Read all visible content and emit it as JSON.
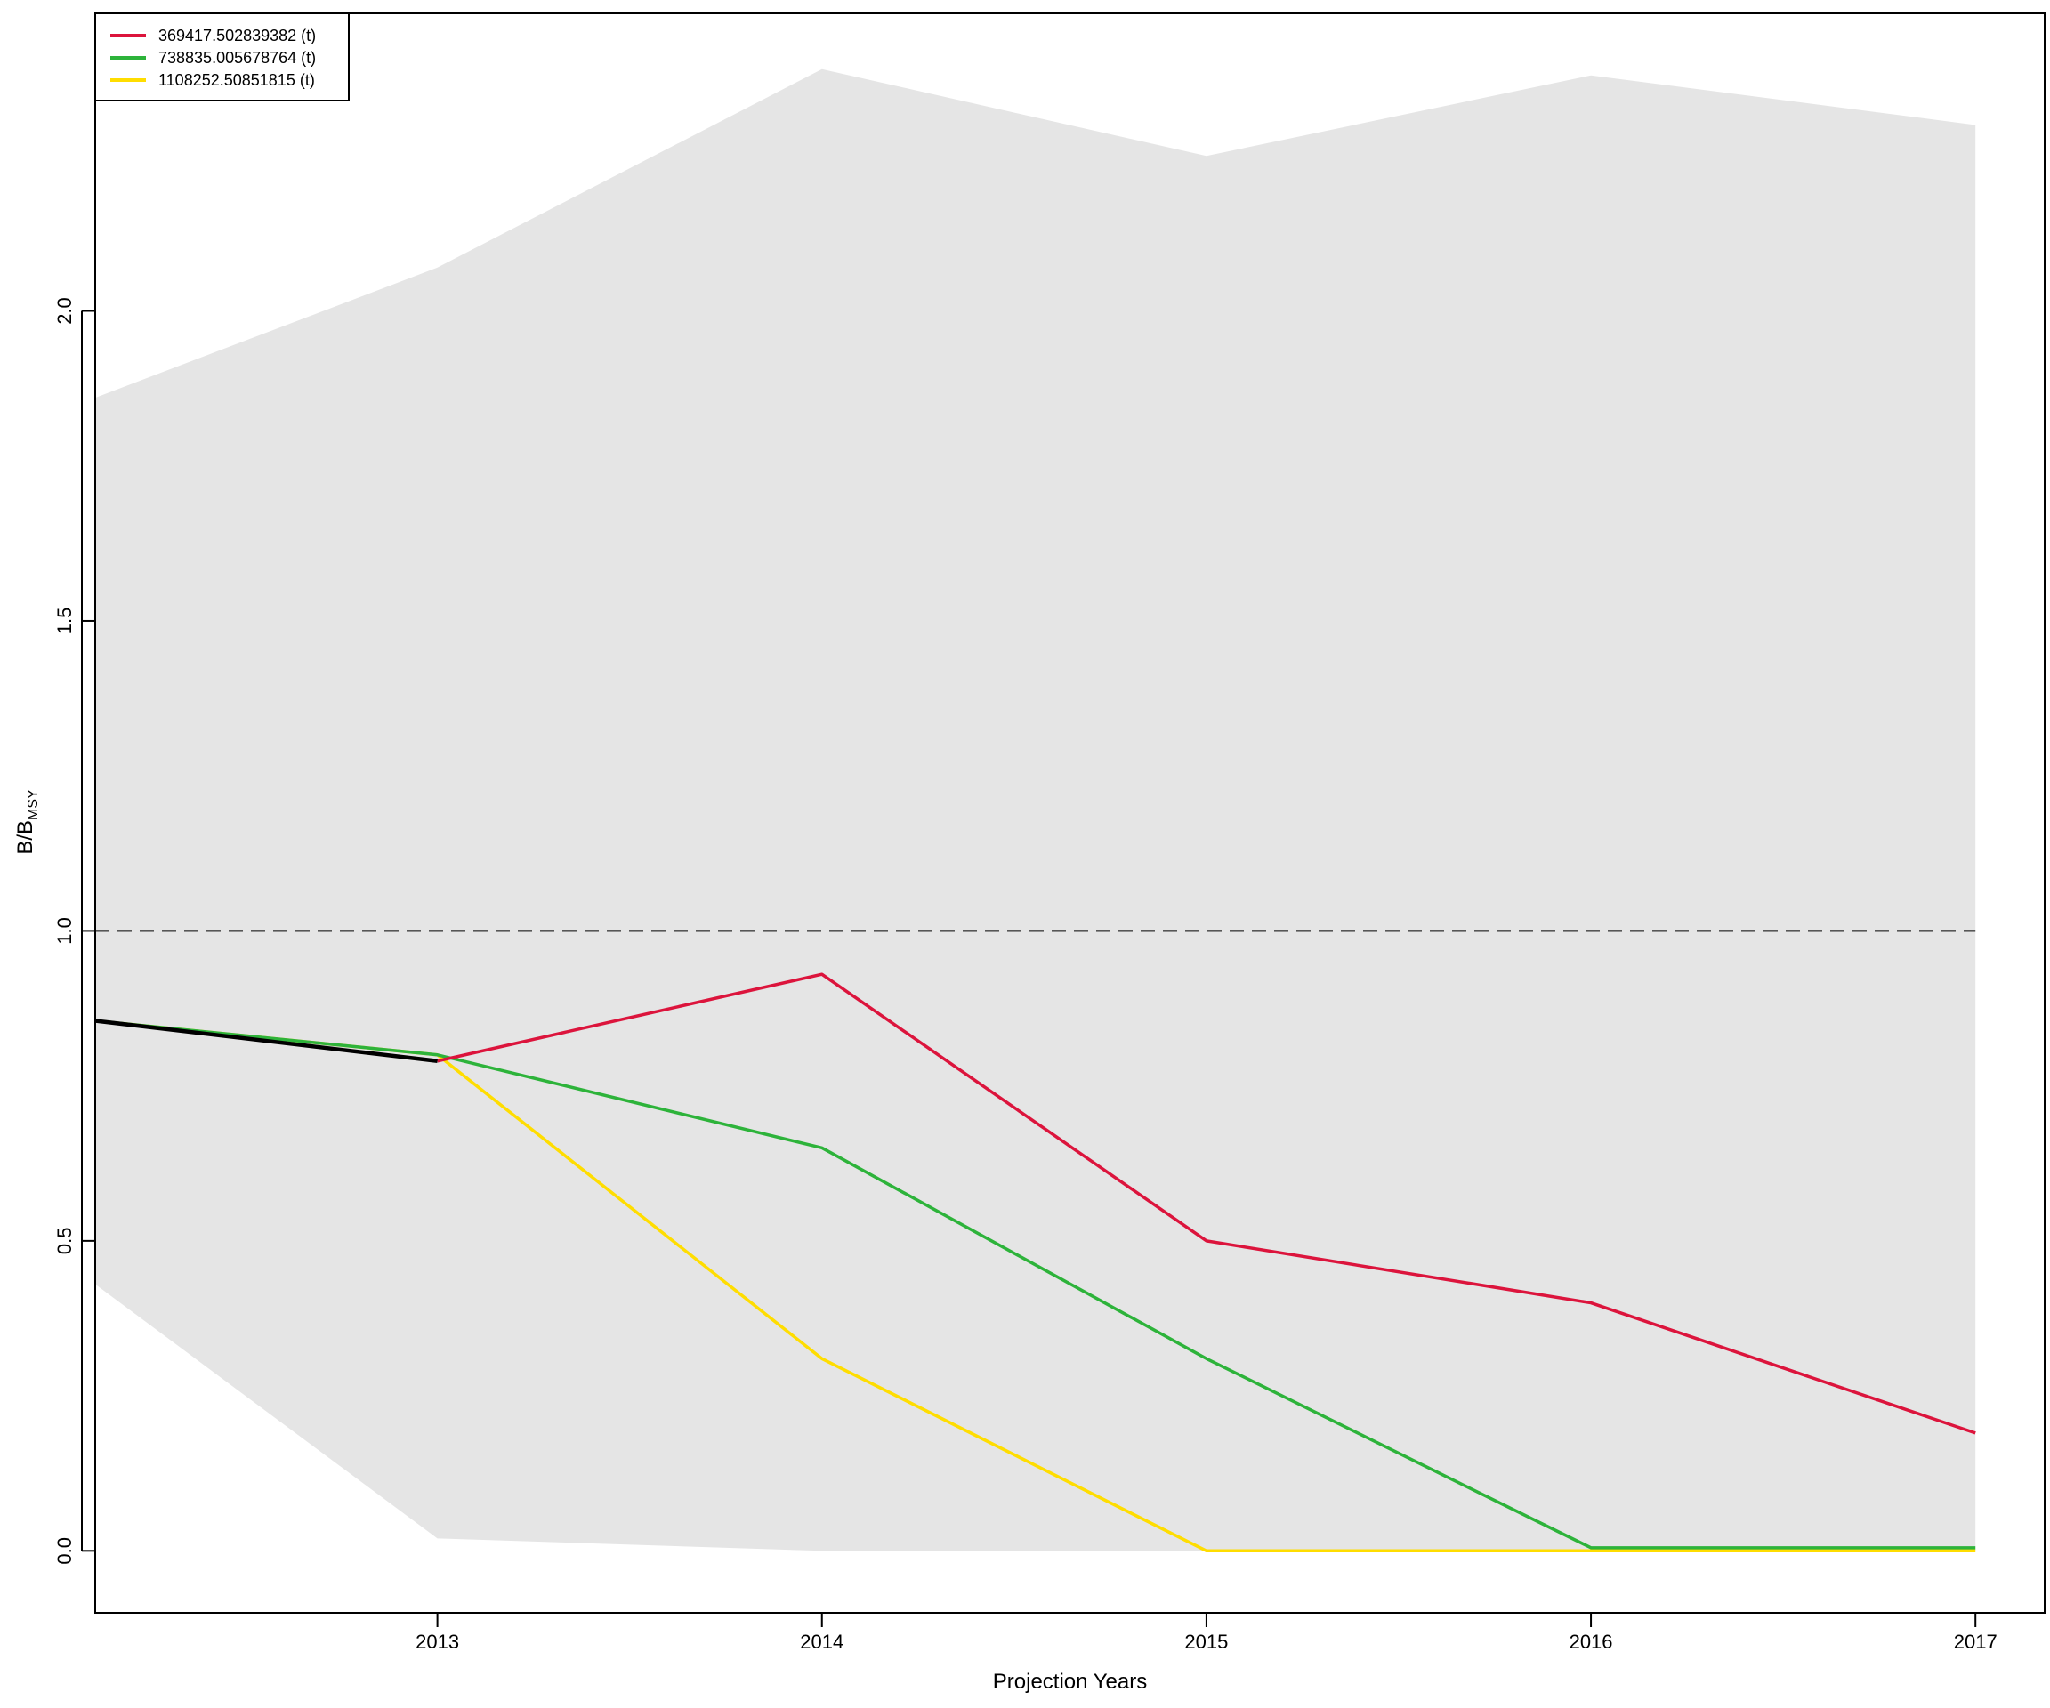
{
  "chart_data": {
    "type": "line",
    "xlabel": "Projection Years",
    "ylabel_main": "B/B",
    "ylabel_sub": "MSY",
    "x_ticks": [
      2013,
      2014,
      2015,
      2016,
      2017
    ],
    "y_ticks": [
      "0.0",
      "0.5",
      "1.0",
      "1.5",
      "2.0"
    ],
    "xlim": [
      2012.11,
      2017.18
    ],
    "ylim": [
      -0.1,
      2.48
    ],
    "reference_line": 1.0,
    "legend_position": "top-left",
    "band": {
      "x": [
        2012.11,
        2013,
        2014,
        2015,
        2016,
        2017
      ],
      "upper": [
        1.86,
        2.07,
        2.39,
        2.25,
        2.38,
        2.3
      ],
      "lower": [
        0.43,
        0.02,
        0.0,
        0.0,
        0.0,
        0.0
      ]
    },
    "history": {
      "x": [
        2012.11,
        2013
      ],
      "values": [
        0.855,
        0.79
      ]
    },
    "series": [
      {
        "name": "369417.502839382 (t)",
        "color": "#DC143C",
        "x": [
          2013,
          2014,
          2015,
          2016,
          2017
        ],
        "values": [
          0.79,
          0.93,
          0.5,
          0.4,
          0.19
        ]
      },
      {
        "name": "738835.005678764 (t)",
        "color": "#2DB33A",
        "x": [
          2012.11,
          2013,
          2014,
          2015,
          2016,
          2017
        ],
        "values": [
          0.855,
          0.8,
          0.65,
          0.31,
          0.005,
          0.005
        ]
      },
      {
        "name": "1108252.50851815 (t)",
        "color": "#FFDD00",
        "x": [
          2012.11,
          2013,
          2014,
          2015,
          2016,
          2017
        ],
        "values": [
          0.855,
          0.8,
          0.31,
          0.0,
          0.0,
          0.0
        ]
      }
    ]
  }
}
